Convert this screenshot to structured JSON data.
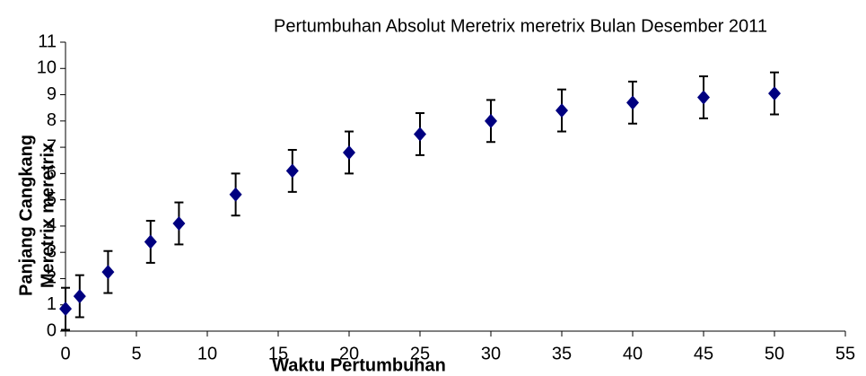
{
  "chart_data": {
    "type": "scatter",
    "title": "Pertumbuhan Absolut Meretrix meretrix Bulan Desember 2011",
    "x_label": "Waktu Pertumbuhan",
    "y_label": [
      "Panjang Cangkang",
      "Meretrix meretrix"
    ],
    "x": [
      0,
      1,
      3,
      6,
      8,
      12,
      16,
      20,
      25,
      30,
      35,
      40,
      45,
      50
    ],
    "values": [
      0.85,
      1.33,
      2.25,
      3.4,
      4.1,
      5.2,
      6.1,
      6.8,
      7.5,
      8.0,
      8.4,
      8.7,
      8.9,
      9.05
    ],
    "errors": [
      0.8,
      0.8,
      0.8,
      0.8,
      0.8,
      0.8,
      0.8,
      0.8,
      0.8,
      0.8,
      0.8,
      0.8,
      0.8,
      0.8
    ],
    "color": "#000080",
    "xlim": [
      0,
      55
    ],
    "xticks": [
      0,
      5,
      10,
      15,
      20,
      25,
      30,
      35,
      40,
      45,
      50,
      55
    ],
    "ylim": [
      0,
      11
    ],
    "yticks": [
      0,
      1,
      2,
      3,
      4,
      5,
      6,
      7,
      8,
      9,
      10,
      11
    ]
  }
}
